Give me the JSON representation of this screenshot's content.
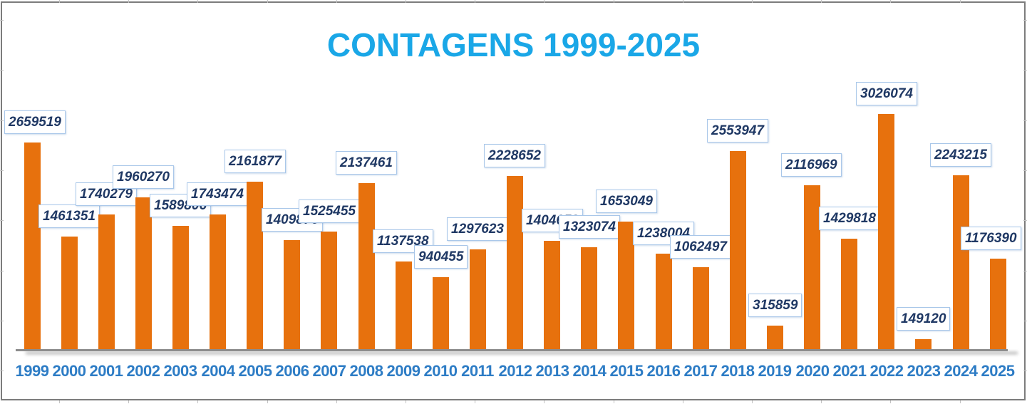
{
  "chart_data": {
    "type": "bar",
    "title": "CONTAGENS 1999-2025",
    "categories": [
      "1999",
      "2000",
      "2001",
      "2002",
      "2003",
      "2004",
      "2005",
      "2006",
      "2007",
      "2008",
      "2009",
      "2010",
      "2011",
      "2012",
      "2013",
      "2014",
      "2015",
      "2016",
      "2017",
      "2018",
      "2019",
      "2020",
      "2021",
      "2022",
      "2023",
      "2024",
      "2025"
    ],
    "values": [
      2659519,
      1461351,
      1740279,
      1960270,
      1589806,
      1743474,
      2161877,
      1409876,
      1525455,
      2137461,
      1137538,
      940455,
      1297623,
      2228652,
      1404658,
      1323074,
      1653049,
      1238004,
      1062497,
      2553947,
      315859,
      2116969,
      1429818,
      3026074,
      149120,
      2243215,
      1176390
    ],
    "xlabel": "",
    "ylabel": "",
    "ylim": [
      0,
      3300000
    ],
    "grid": "off",
    "legend": "none",
    "data_labels_visible": true,
    "bar_color": "#e7710d",
    "title_color": "#1aa7e7",
    "axis_tick_color": "#2d7cc5",
    "data_label_text_color": "#1f3864",
    "data_label_border_color": "#a9c7e9",
    "axis_line_color": "#8c8c8c"
  }
}
